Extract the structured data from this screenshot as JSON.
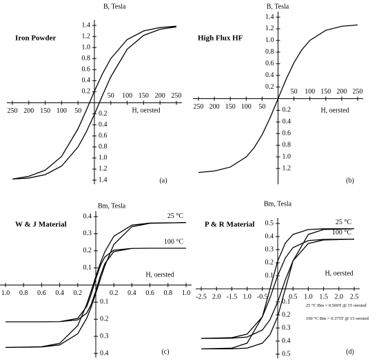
{
  "chart_data": [
    {
      "type": "line",
      "title": "Iron Powder",
      "label": "(a)",
      "xlabel": "H,  oersted",
      "ylabel": "B,  Tesla",
      "color": "#000000",
      "xlim": [
        -250,
        250
      ],
      "ylim": [
        -1.4,
        1.4
      ],
      "xticks": [
        {
          "value": -250,
          "label": "250"
        },
        {
          "value": -200,
          "label": "200"
        },
        {
          "value": -150,
          "label": "150"
        },
        {
          "value": -100,
          "label": "100"
        },
        {
          "value": -50,
          "label": "50"
        },
        50,
        100,
        150,
        200,
        250
      ],
      "yticks": [
        {
          "value": -1.4,
          "label": "1.4"
        },
        {
          "value": -1.2,
          "label": "1.2"
        },
        {
          "value": -1,
          "label": "1.0"
        },
        {
          "value": -0.8,
          "label": "0.8"
        },
        {
          "value": -0.6,
          "label": "0.6"
        },
        {
          "value": -0.4,
          "label": "0.4"
        },
        {
          "value": -0.2,
          "label": "0.2"
        },
        0.2,
        0.4,
        0.6,
        0.8,
        {
          "value": 1,
          "label": "1.0"
        },
        1.2,
        1.4
      ],
      "series": [
        {
          "x": [
            250,
            200,
            150,
            100,
            50,
            25,
            0,
            -25,
            -50,
            -100,
            -150,
            -200,
            -250,
            -200,
            -150,
            -100,
            -50,
            -25,
            0,
            25,
            50,
            100,
            150,
            200,
            250
          ],
          "values": [
            1.386,
            1.362,
            1.3,
            1.145,
            0.8,
            0.53,
            0.21,
            -0.14,
            -0.47,
            -0.97,
            -1.22,
            -1.33,
            -1.38,
            -1.362,
            -1.3,
            -1.145,
            -0.8,
            -0.53,
            -0.21,
            0.14,
            0.47,
            0.97,
            1.22,
            1.33,
            1.375
          ]
        }
      ]
    },
    {
      "type": "line",
      "title": "High Flux  HF",
      "label": "(b)",
      "xlabel": "H,  oersted",
      "ylabel": "B,  Tesla",
      "color": "#000000",
      "xlim": [
        -250,
        250
      ],
      "ylim": [
        -1.4,
        1.4
      ],
      "xticks": [
        {
          "value": -250,
          "label": "250"
        },
        {
          "value": -200,
          "label": "200"
        },
        {
          "value": -150,
          "label": "150"
        },
        {
          "value": -100,
          "label": "100"
        },
        {
          "value": -50,
          "label": "50"
        },
        50,
        100,
        150,
        200,
        250
      ],
      "yticks": [
        {
          "value": -1.2,
          "label": "1.2"
        },
        {
          "value": -1,
          "label": "1.0"
        },
        {
          "value": -0.8,
          "label": "0.8"
        },
        {
          "value": -0.6,
          "label": "0.6"
        },
        {
          "value": -0.4,
          "label": "0.4"
        },
        {
          "value": -0.2,
          "label": "0.2"
        },
        0.2,
        0.4,
        0.6,
        0.8,
        {
          "value": 1,
          "label": "1.0"
        },
        1.2,
        1.4
      ],
      "series": [
        {
          "x": [
            -250,
            -200,
            -150,
            -100,
            -75,
            -50,
            -25,
            0,
            25,
            50,
            75,
            100,
            150,
            200,
            250
          ],
          "values": [
            -1.267,
            -1.243,
            -1.175,
            -1.002,
            -0.842,
            -0.618,
            -0.329,
            0,
            0.329,
            0.618,
            0.842,
            1.002,
            1.175,
            1.243,
            1.267
          ]
        }
      ]
    },
    {
      "type": "line",
      "title": "W & J  Material",
      "label": "(c)",
      "xlabel": "H,  oersted",
      "ylabel": "Bm, Tesla",
      "color": "#000000",
      "xlim": [
        -1,
        1
      ],
      "ylim": [
        -0.4,
        0.4
      ],
      "xticks": [
        {
          "value": -1,
          "label": "1.0"
        },
        {
          "value": -0.8,
          "label": "0.8"
        },
        {
          "value": -0.6,
          "label": "0.6"
        },
        {
          "value": -0.4,
          "label": "0.4"
        },
        {
          "value": -0.2,
          "label": "0.2"
        },
        0.2,
        0.4,
        0.6,
        0.8,
        {
          "value": 1,
          "label": "1.0"
        }
      ],
      "yticks": [
        {
          "value": -0.4,
          "label": "0.4"
        },
        {
          "value": -0.3,
          "label": "0.3"
        },
        {
          "value": -0.2,
          "label": "0.2"
        },
        {
          "value": -0.1,
          "label": "0.1"
        },
        0.1,
        0.2,
        0.3,
        0.4
      ],
      "series": [
        {
          "name": "25  °C",
          "x": [
            1,
            0.6,
            0.4,
            0.2,
            0.1,
            0.05,
            0,
            -0.05,
            -0.1,
            -0.2,
            -0.4,
            -0.6,
            -1,
            -0.6,
            -0.4,
            -0.2,
            -0.1,
            -0.05,
            0,
            0.05,
            0.1,
            0.2,
            0.4,
            0.6,
            1
          ],
          "values": [
            0.365,
            0.362,
            0.35,
            0.285,
            0.194,
            0.127,
            0.049,
            -0.033,
            -0.112,
            -0.237,
            -0.341,
            -0.361,
            -0.365,
            -0.362,
            -0.35,
            -0.285,
            -0.194,
            -0.127,
            -0.049,
            0.033,
            0.112,
            0.237,
            0.341,
            0.361,
            0.365
          ]
        },
        {
          "name": "100  °C",
          "x": [
            1,
            0.6,
            0.4,
            0.2,
            0.1,
            0.05,
            0,
            -0.05,
            -0.1,
            -0.2,
            -0.4,
            -0.6,
            -1,
            -0.6,
            -0.4,
            -0.2,
            -0.1,
            -0.05,
            0,
            0.05,
            0.1,
            0.2,
            0.4,
            0.6,
            1
          ],
          "values": [
            0.215,
            0.215,
            0.214,
            0.204,
            0.164,
            0.113,
            0.035,
            -0.053,
            -0.125,
            -0.195,
            -0.214,
            -0.215,
            -0.215,
            -0.215,
            -0.214,
            -0.204,
            -0.164,
            -0.113,
            -0.035,
            0.053,
            0.125,
            0.195,
            0.214,
            0.215,
            0.215
          ]
        }
      ]
    },
    {
      "type": "line",
      "title": "P & R  Material",
      "label": "(d)",
      "xlabel": "H,  oersted",
      "ylabel": "Bm, Tesla",
      "color": "#000000",
      "xlim": [
        -2.5,
        2.5
      ],
      "ylim": [
        -0.5,
        0.5
      ],
      "xticks": [
        -2.5,
        {
          "value": -2,
          "label": "2.0"
        },
        -1.5,
        {
          "value": -1,
          "label": "1.0"
        },
        -0.5,
        0.5,
        {
          "value": 1,
          "label": "1.0"
        },
        1.5,
        {
          "value": 2,
          "label": "2.0"
        },
        2.5
      ],
      "yticks": [
        {
          "value": -0.5,
          "label": "0.5"
        },
        {
          "value": -0.4,
          "label": "0.4"
        },
        {
          "value": -0.3,
          "label": "0.3"
        },
        {
          "value": -0.2,
          "label": "0.2"
        },
        {
          "value": -0.1,
          "label": "0.1"
        },
        0.1,
        0.2,
        0.3,
        0.4,
        0.5
      ],
      "annotations": [
        "25 °C   Bm = 0.500T @ 15 oersted",
        "100 °C  Bm = 0.375T @ 15 oersted"
      ],
      "series": [
        {
          "name": "25  °C",
          "x": [
            2.5,
            1.5,
            1,
            0.5,
            0.25,
            0,
            -0.25,
            -0.5,
            -1,
            -1.5,
            -2.5,
            -1.5,
            -1,
            -0.5,
            -0.25,
            0,
            0.25,
            0.5,
            1,
            1.5,
            2.5
          ],
          "values": [
            0.46,
            0.459,
            0.454,
            0.416,
            0.35,
            0.213,
            0,
            -0.213,
            -0.416,
            -0.454,
            -0.46,
            -0.459,
            -0.454,
            -0.416,
            -0.35,
            -0.213,
            0,
            0.213,
            0.416,
            0.454,
            0.46
          ]
        },
        {
          "name": "100  °C",
          "x": [
            2.5,
            1.5,
            1,
            0.5,
            0.25,
            0,
            -0.25,
            -0.5,
            -1,
            -1.5,
            -2.5,
            -1.5,
            -1,
            -0.5,
            -0.25,
            0,
            0.25,
            0.5,
            1,
            1.5,
            2.5
          ],
          "values": [
            0.38,
            0.378,
            0.369,
            0.315,
            0.236,
            0.101,
            -0.068,
            -0.214,
            -0.347,
            -0.374,
            -0.38,
            -0.378,
            -0.369,
            -0.315,
            -0.236,
            -0.101,
            0.068,
            0.214,
            0.347,
            0.374,
            0.38
          ]
        }
      ]
    }
  ]
}
